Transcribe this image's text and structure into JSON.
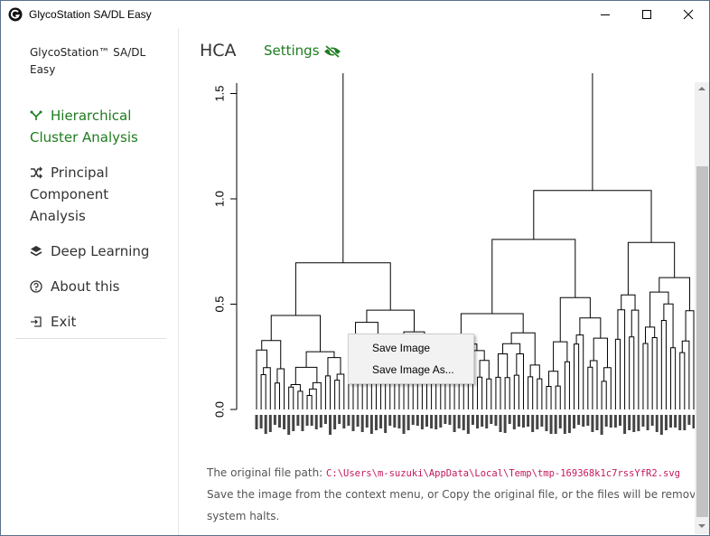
{
  "window": {
    "title": "GlycoStation SA/DL Easy"
  },
  "sidebar": {
    "brand": "GlycoStation™ SA/DL Easy",
    "items": [
      {
        "label": "Hierarchical Cluster Analysis",
        "icon": "cluster-icon",
        "active": true
      },
      {
        "label": "Principal Component Analysis",
        "icon": "shuffle-icon",
        "active": false
      },
      {
        "label": "Deep Learning",
        "icon": "layers-icon",
        "active": false
      },
      {
        "label": "About this",
        "icon": "help-circle-icon",
        "active": false
      },
      {
        "label": "Exit",
        "icon": "exit-icon",
        "active": false
      }
    ]
  },
  "header": {
    "title": "HCA",
    "settings_label": "Settings",
    "settings_icon": "eye-off-icon"
  },
  "footer": {
    "path_prefix": "The original file path:",
    "path": "C:\\Users\\m-suzuki\\AppData\\Local\\Temp\\tmp-169368k1c7rssYfR2.svg",
    "line2": "Save the image from the context menu, or Copy the original file, or the files will be removed whe",
    "line3": "system halts."
  },
  "context_menu": {
    "items": [
      "Save Image",
      "Save Image As..."
    ]
  },
  "chart_data": {
    "type": "dendrogram",
    "y_ticks": [
      "0.0",
      "0.5",
      "1.0",
      "1.5"
    ],
    "ylim": [
      0,
      1.55
    ],
    "x_tick_labels_legible": false
  },
  "colors": {
    "accent": "#1e7d1e",
    "text": "#333333",
    "path": "#c2185b"
  }
}
